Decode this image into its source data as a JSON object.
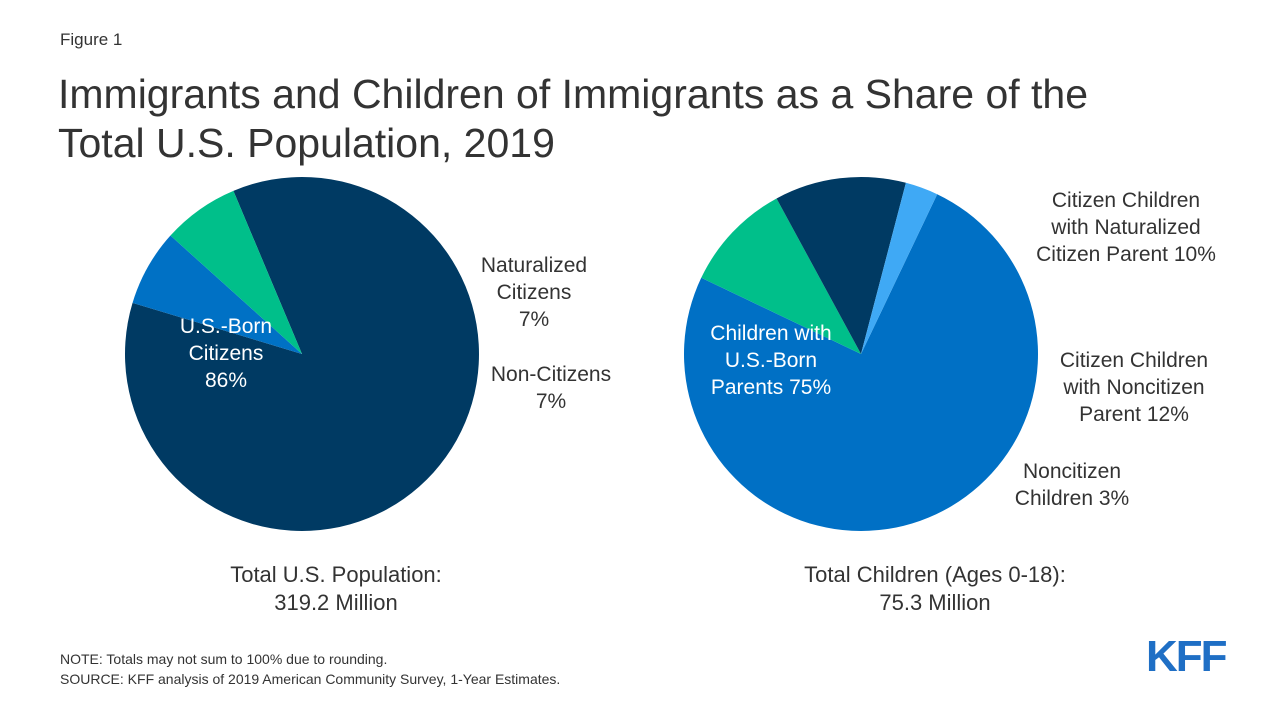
{
  "figure_label": "Figure 1",
  "title_line1": "Immigrants and Children of Immigrants as a Share of the",
  "title_line2": "Total U.S. Population, 2019",
  "chart_data": [
    {
      "type": "pie",
      "slices": [
        {
          "label_lines": [
            "U.S.-Born",
            "Citizens",
            "86%"
          ],
          "value": 86,
          "color": "#003a63",
          "label_color": "#ffffff"
        },
        {
          "label_lines": [
            "Naturalized",
            "Citizens",
            "7%"
          ],
          "value": 7,
          "color": "#0071c5",
          "label_color": "#333333"
        },
        {
          "label_lines": [
            "Non-Citizens",
            "7%"
          ],
          "value": 7,
          "color": "#00bf8a",
          "label_color": "#333333"
        }
      ],
      "caption_lines": [
        "Total U.S. Population:",
        "319.2 Million"
      ]
    },
    {
      "type": "pie",
      "slices": [
        {
          "label_lines": [
            "Children with",
            "U.S.-Born",
            "Parents 75%"
          ],
          "value": 75,
          "color": "#0070c5",
          "label_color": "#ffffff"
        },
        {
          "label_lines": [
            "Citizen Children",
            "with Naturalized",
            "Citizen Parent 10%"
          ],
          "value": 10,
          "color": "#00bf8a",
          "label_color": "#333333"
        },
        {
          "label_lines": [
            "Citizen Children",
            "with Noncitizen",
            "Parent 12%"
          ],
          "value": 12,
          "color": "#003a63",
          "label_color": "#333333"
        },
        {
          "label_lines": [
            "Noncitizen",
            "Children 3%"
          ],
          "value": 3,
          "color": "#3fa9f5",
          "label_color": "#333333"
        }
      ],
      "caption_lines": [
        "Total Children (Ages 0-18):",
        "75.3 Million"
      ]
    }
  ],
  "note": "NOTE: Totals may not sum to 100% due to rounding.",
  "source": "SOURCE: KFF analysis of 2019 American Community Survey, 1-Year Estimates.",
  "logo_text": "KFF",
  "logo_color": "#1f6fc5"
}
